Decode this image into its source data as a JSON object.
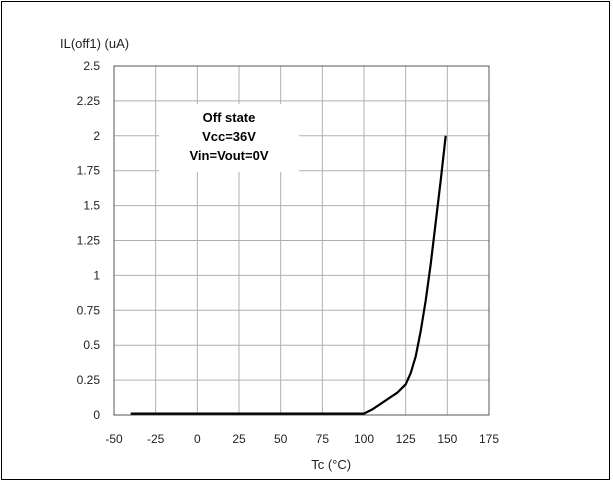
{
  "chart_data": {
    "type": "line",
    "title": "",
    "ylabel": "IL(off1) (uA)",
    "xlabel": "Tc (°C)",
    "xlim": [
      -50,
      175
    ],
    "ylim": [
      0,
      2.5
    ],
    "x_ticks": [
      "-50",
      "-25",
      "0",
      "25",
      "50",
      "75",
      "100",
      "125",
      "150",
      "175"
    ],
    "y_ticks": [
      "0",
      "0.25",
      "0.5",
      "0.75",
      "1",
      "1.25",
      "1.5",
      "1.75",
      "2",
      "2.25",
      "2.5"
    ],
    "grid": true,
    "annotation": [
      "Off state",
      "Vcc=36V",
      "Vin=Vout=0V"
    ],
    "series": [
      {
        "x": [
          -40,
          0,
          50,
          100,
          105,
          110,
          115,
          120,
          125,
          128,
          131,
          134,
          137,
          140,
          143,
          146,
          149
        ],
        "y": [
          0.01,
          0.01,
          0.01,
          0.01,
          0.04,
          0.08,
          0.12,
          0.16,
          0.22,
          0.3,
          0.42,
          0.6,
          0.82,
          1.08,
          1.38,
          1.68,
          2.0
        ],
        "color": "#000000"
      }
    ]
  }
}
